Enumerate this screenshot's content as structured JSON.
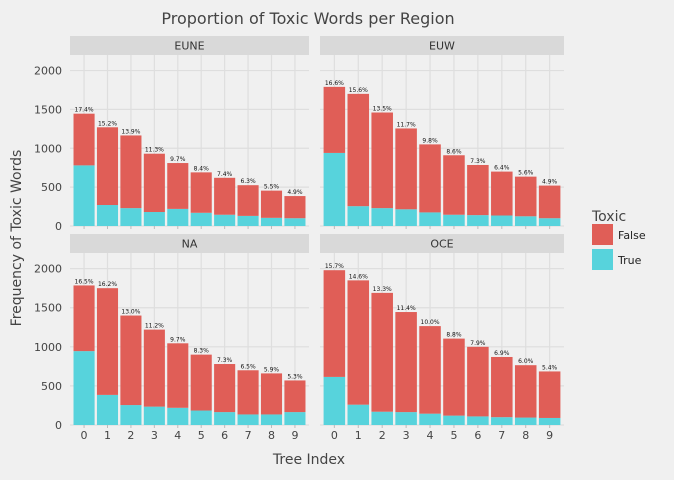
{
  "chart_data": {
    "type": "bar",
    "stacked": true,
    "title": "Proportion of Toxic Words per Region",
    "xlabel": "Tree Index",
    "ylabel": "Frequency of Toxic Words",
    "categories": [
      "0",
      "1",
      "2",
      "3",
      "4",
      "5",
      "6",
      "7",
      "8",
      "9"
    ],
    "ylim": [
      0,
      2200
    ],
    "yticks": [
      0,
      500,
      1000,
      1500,
      2000
    ],
    "grid": true,
    "legend": {
      "title": "Toxic",
      "position": "right",
      "entries": [
        {
          "label": "False",
          "color": "#e05e57"
        },
        {
          "label": "True",
          "color": "#57d3dc"
        }
      ]
    },
    "facets": [
      {
        "panel": "EUNE",
        "true_values": [
          780,
          270,
          230,
          180,
          220,
          170,
          145,
          130,
          105,
          100
        ],
        "false_values": [
          665,
          1000,
          935,
          750,
          590,
          520,
          475,
          395,
          350,
          285
        ],
        "labels": [
          "17.4%",
          "15.2%",
          "13.9%",
          "11.3%",
          "9.7%",
          "8.4%",
          "7.4%",
          "6.3%",
          "5.5%",
          "4.9%"
        ]
      },
      {
        "panel": "EUW",
        "true_values": [
          940,
          255,
          230,
          215,
          175,
          145,
          140,
          135,
          125,
          100
        ],
        "false_values": [
          850,
          1445,
          1230,
          1040,
          875,
          765,
          645,
          565,
          510,
          420
        ],
        "labels": [
          "16.6%",
          "15.6%",
          "13.5%",
          "11.7%",
          "9.8%",
          "8.6%",
          "7.3%",
          "6.4%",
          "5.6%",
          "4.9%"
        ]
      },
      {
        "panel": "NA",
        "true_values": [
          945,
          385,
          255,
          235,
          220,
          185,
          165,
          135,
          135,
          165
        ],
        "false_values": [
          840,
          1365,
          1145,
          985,
          825,
          715,
          615,
          565,
          525,
          405
        ],
        "labels": [
          "16.5%",
          "16.2%",
          "13.0%",
          "11.2%",
          "9.7%",
          "8.3%",
          "7.3%",
          "6.5%",
          "5.9%",
          "5.3%"
        ]
      },
      {
        "panel": "OCE",
        "true_values": [
          615,
          260,
          170,
          165,
          145,
          120,
          110,
          100,
          95,
          90
        ],
        "false_values": [
          1365,
          1590,
          1520,
          1280,
          1120,
          985,
          890,
          770,
          670,
          595
        ],
        "labels": [
          "15.7%",
          "14.6%",
          "13.3%",
          "11.4%",
          "10.0%",
          "8.8%",
          "7.9%",
          "6.9%",
          "6.0%",
          "5.4%"
        ]
      }
    ]
  },
  "colors": {
    "background": "#f0f0f0",
    "grid": "#dedede",
    "strip": "#d9d9d9",
    "false": "#e05e57",
    "true": "#57d3dc",
    "text": "#444444"
  }
}
